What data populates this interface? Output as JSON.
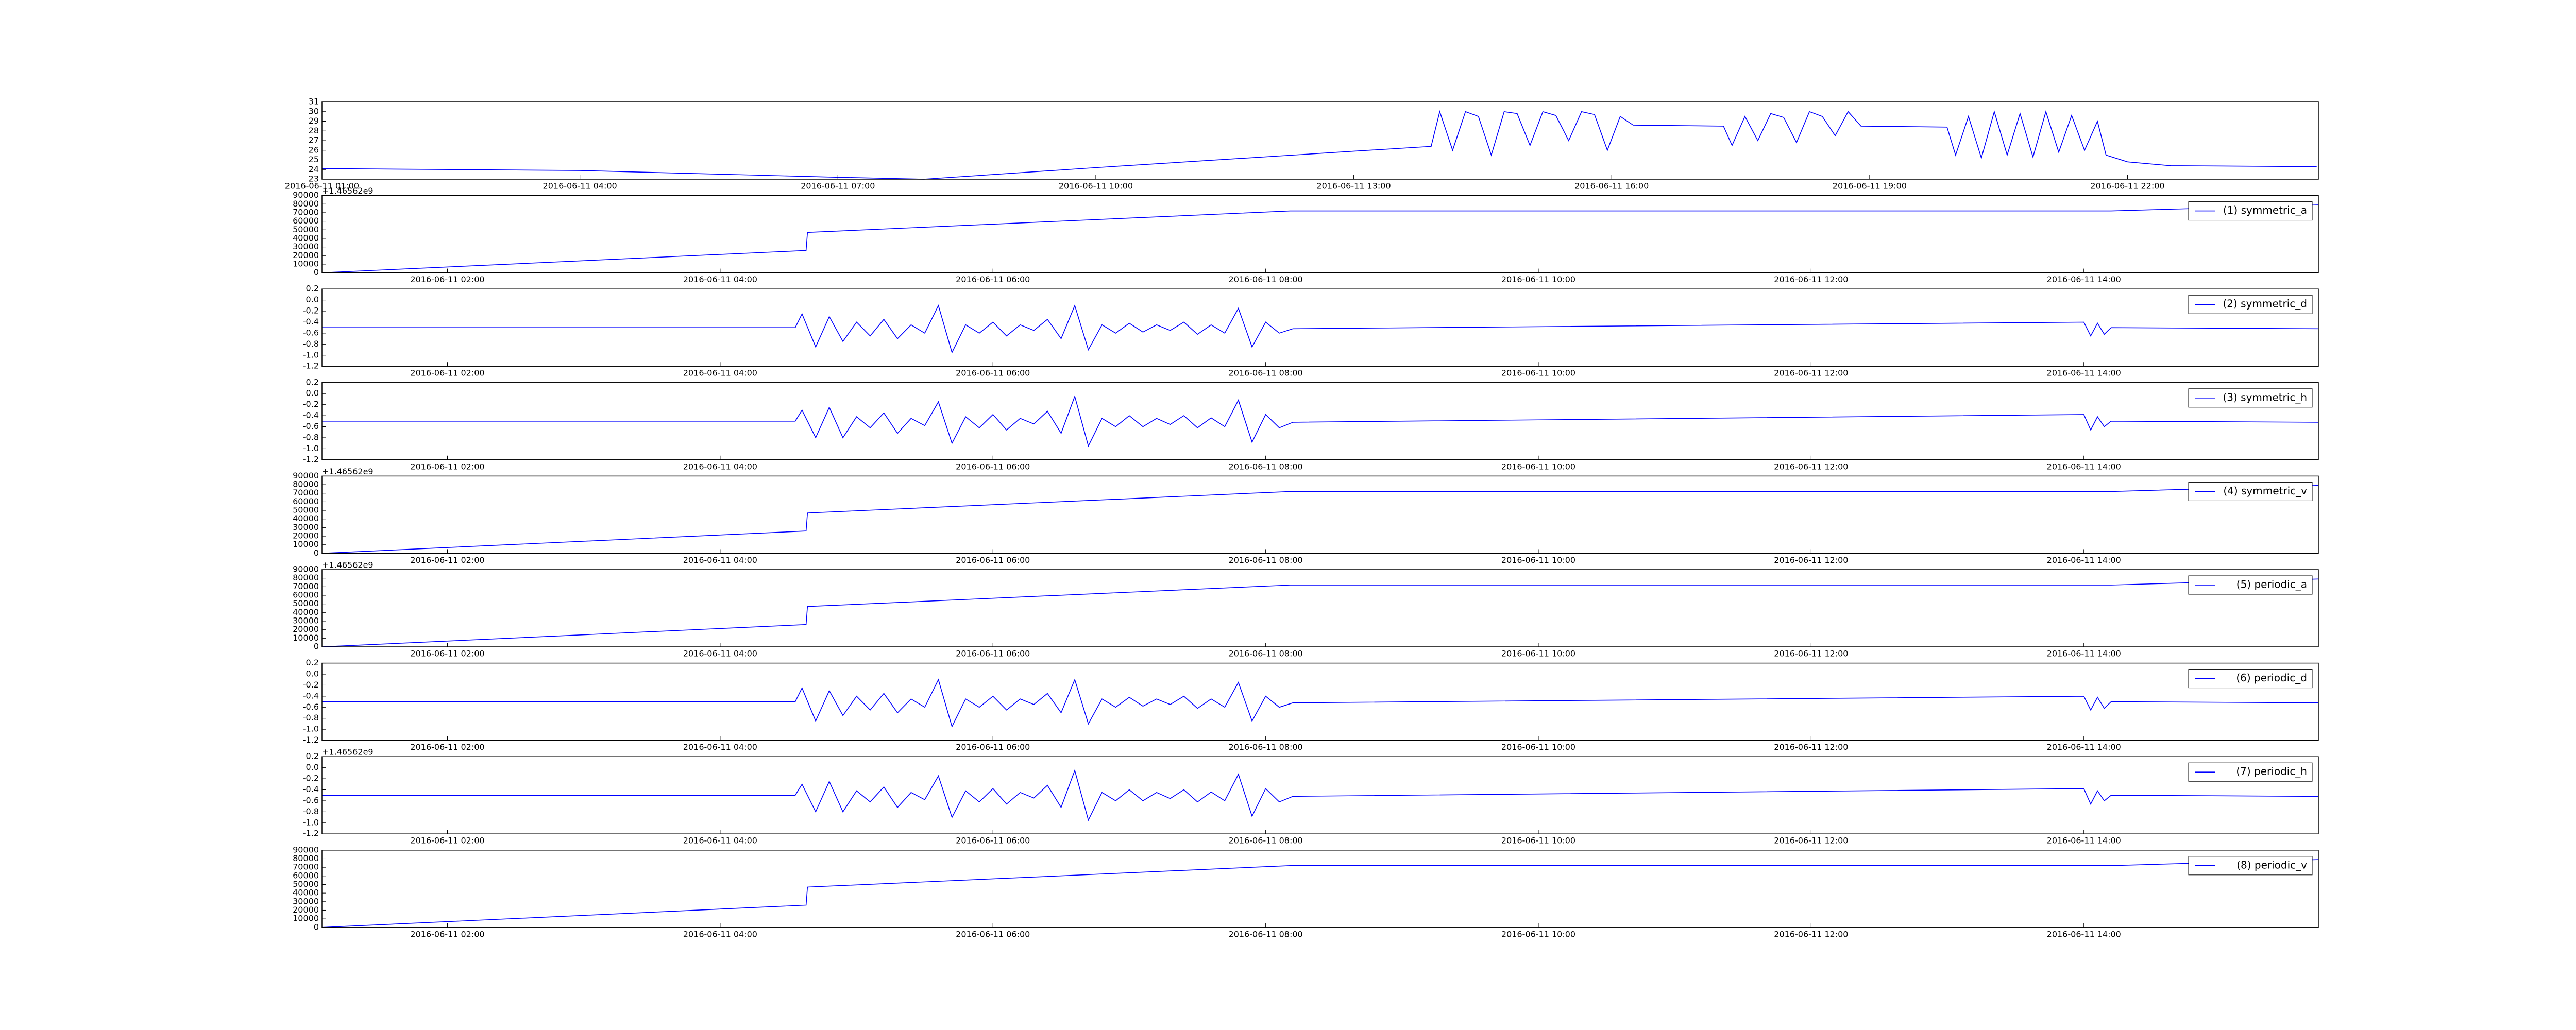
{
  "chart_data": [
    {
      "type": "line",
      "color": "#0000ff",
      "x": [
        1.0,
        4.0,
        7.0,
        8.0,
        10.0,
        13.0,
        13.9,
        14.0,
        14.15,
        14.3,
        14.45,
        14.6,
        14.75,
        14.9,
        15.05,
        15.2,
        15.35,
        15.5,
        15.65,
        15.8,
        15.95,
        16.1,
        16.25,
        17.3,
        17.4,
        17.55,
        17.7,
        17.85,
        18.0,
        18.15,
        18.3,
        18.45,
        18.6,
        18.75,
        18.9,
        19.9,
        20.0,
        20.15,
        20.3,
        20.45,
        20.6,
        20.75,
        20.9,
        21.05,
        21.2,
        21.35,
        21.5,
        21.65,
        21.75,
        22.0,
        22.5,
        24.2
      ],
      "values": [
        24.1,
        23.9,
        23.2,
        23.0,
        24.2,
        25.9,
        26.4,
        30,
        26,
        30,
        29.5,
        25.5,
        30,
        29.8,
        26.5,
        30,
        29.6,
        27,
        30,
        29.7,
        26,
        29.5,
        28.6,
        28.5,
        26.5,
        29.5,
        27,
        29.8,
        29.4,
        26.8,
        30,
        29.5,
        27.5,
        30,
        28.5,
        28.4,
        25.5,
        29.5,
        25.2,
        30,
        25.5,
        29.8,
        25.3,
        30,
        25.8,
        29.6,
        26,
        29,
        25.5,
        24.8,
        24.4,
        24.3
      ],
      "xlim": [
        1.0,
        24.22
      ],
      "ylim": [
        23,
        31
      ],
      "yticks": [
        23,
        24,
        25,
        26,
        27,
        28,
        29,
        30,
        31
      ],
      "xticks": [
        {
          "value": 1,
          "label": "2016-06-11 01:00"
        },
        {
          "value": 4,
          "label": "2016-06-11 04:00"
        },
        {
          "value": 7,
          "label": "2016-06-11 07:00"
        },
        {
          "value": 10,
          "label": "2016-06-11 10:00"
        },
        {
          "value": 13,
          "label": "2016-06-11 13:00"
        },
        {
          "value": 16,
          "label": "2016-06-11 16:00"
        },
        {
          "value": 19,
          "label": "2016-06-11 19:00"
        },
        {
          "value": 22,
          "label": "2016-06-11 22:00"
        }
      ]
    },
    {
      "type": "line",
      "offset_text": "+1.46562e9",
      "legend": "upper right",
      "x": [
        1.08,
        4.63,
        4.64,
        8.18,
        14.2,
        15.72
      ],
      "series": [
        {
          "name": "(1) symmetric_a",
          "color": "#0000ff",
          "values": [
            0,
            26000,
            47000,
            72000,
            72000,
            79000
          ]
        }
      ],
      "xlim": [
        1.08,
        15.72
      ],
      "ylim": [
        0,
        90000
      ],
      "yticks": [
        0,
        10000,
        20000,
        30000,
        40000,
        50000,
        60000,
        70000,
        80000,
        90000
      ],
      "xticks": [
        {
          "value": 2,
          "label": "2016-06-11 02:00"
        },
        {
          "value": 4,
          "label": "2016-06-11 04:00"
        },
        {
          "value": 6,
          "label": "2016-06-11 06:00"
        },
        {
          "value": 8,
          "label": "2016-06-11 08:00"
        },
        {
          "value": 10,
          "label": "2016-06-11 10:00"
        },
        {
          "value": 12,
          "label": "2016-06-11 12:00"
        },
        {
          "value": 14,
          "label": "2016-06-11 14:00"
        }
      ]
    },
    {
      "type": "line",
      "legend": "upper right",
      "x": [
        1.08,
        4.55,
        4.6,
        4.7,
        4.8,
        4.9,
        5.0,
        5.1,
        5.2,
        5.3,
        5.4,
        5.5,
        5.6,
        5.7,
        5.8,
        5.9,
        6.0,
        6.1,
        6.2,
        6.3,
        6.4,
        6.5,
        6.6,
        6.7,
        6.8,
        6.9,
        7.0,
        7.1,
        7.2,
        7.3,
        7.4,
        7.5,
        7.6,
        7.7,
        7.8,
        7.9,
        8.0,
        8.1,
        8.2,
        14.0,
        14.05,
        14.1,
        14.15,
        14.2,
        15.72
      ],
      "series": [
        {
          "name": "(2) symmetric_d",
          "color": "#0000ff",
          "values": [
            -0.5,
            -0.5,
            -0.25,
            -0.85,
            -0.3,
            -0.75,
            -0.4,
            -0.65,
            -0.35,
            -0.7,
            -0.45,
            -0.6,
            -0.1,
            -0.95,
            -0.45,
            -0.6,
            -0.4,
            -0.65,
            -0.45,
            -0.55,
            -0.35,
            -0.7,
            -0.1,
            -0.9,
            -0.45,
            -0.6,
            -0.42,
            -0.58,
            -0.45,
            -0.55,
            -0.4,
            -0.62,
            -0.45,
            -0.6,
            -0.15,
            -0.85,
            -0.4,
            -0.6,
            -0.52,
            -0.4,
            -0.65,
            -0.42,
            -0.62,
            -0.5,
            -0.52
          ]
        }
      ],
      "xlim": [
        1.08,
        15.72
      ],
      "ylim": [
        -1.2,
        0.2
      ],
      "yticks": [
        -1.2,
        {
          "value": -1,
          "label": "-1.0"
        },
        -0.8,
        -0.6,
        -0.4,
        -0.2,
        {
          "value": 0,
          "label": "0.0"
        },
        0.2
      ],
      "xticks": [
        {
          "value": 2,
          "label": "2016-06-11 02:00"
        },
        {
          "value": 4,
          "label": "2016-06-11 04:00"
        },
        {
          "value": 6,
          "label": "2016-06-11 06:00"
        },
        {
          "value": 8,
          "label": "2016-06-11 08:00"
        },
        {
          "value": 10,
          "label": "2016-06-11 10:00"
        },
        {
          "value": 12,
          "label": "2016-06-11 12:00"
        },
        {
          "value": 14,
          "label": "2016-06-11 14:00"
        }
      ]
    },
    {
      "type": "line",
      "legend": "upper right",
      "x": [
        1.08,
        4.55,
        4.6,
        4.7,
        4.8,
        4.9,
        5.0,
        5.1,
        5.2,
        5.3,
        5.4,
        5.5,
        5.6,
        5.7,
        5.8,
        5.9,
        6.0,
        6.1,
        6.2,
        6.3,
        6.4,
        6.5,
        6.6,
        6.7,
        6.8,
        6.9,
        7.0,
        7.1,
        7.2,
        7.3,
        7.4,
        7.5,
        7.6,
        7.7,
        7.8,
        7.9,
        8.0,
        8.1,
        8.2,
        14.0,
        14.05,
        14.1,
        14.15,
        14.2,
        15.72
      ],
      "series": [
        {
          "name": "(3) symmetric_h",
          "color": "#0000ff",
          "values": [
            -0.5,
            -0.5,
            -0.3,
            -0.8,
            -0.25,
            -0.8,
            -0.42,
            -0.62,
            -0.35,
            -0.72,
            -0.45,
            -0.58,
            -0.15,
            -0.9,
            -0.42,
            -0.62,
            -0.38,
            -0.66,
            -0.45,
            -0.55,
            -0.32,
            -0.72,
            -0.05,
            -0.95,
            -0.45,
            -0.6,
            -0.4,
            -0.6,
            -0.45,
            -0.56,
            -0.4,
            -0.62,
            -0.44,
            -0.6,
            -0.12,
            -0.88,
            -0.38,
            -0.62,
            -0.52,
            -0.38,
            -0.66,
            -0.42,
            -0.6,
            -0.5,
            -0.52
          ]
        }
      ],
      "xlim": [
        1.08,
        15.72
      ],
      "ylim": [
        -1.2,
        0.2
      ],
      "yticks": [
        -1.2,
        {
          "value": -1,
          "label": "-1.0"
        },
        -0.8,
        -0.6,
        -0.4,
        -0.2,
        {
          "value": 0,
          "label": "0.0"
        },
        0.2
      ],
      "xticks": [
        {
          "value": 2,
          "label": "2016-06-11 02:00"
        },
        {
          "value": 4,
          "label": "2016-06-11 04:00"
        },
        {
          "value": 6,
          "label": "2016-06-11 06:00"
        },
        {
          "value": 8,
          "label": "2016-06-11 08:00"
        },
        {
          "value": 10,
          "label": "2016-06-11 10:00"
        },
        {
          "value": 12,
          "label": "2016-06-11 12:00"
        },
        {
          "value": 14,
          "label": "2016-06-11 14:00"
        }
      ]
    },
    {
      "type": "line",
      "offset_text": "+1.46562e9",
      "legend": "upper right",
      "x": [
        1.08,
        4.63,
        4.64,
        8.18,
        14.2,
        15.72
      ],
      "series": [
        {
          "name": "(4) symmetric_v",
          "color": "#0000ff",
          "values": [
            0,
            26000,
            47000,
            72000,
            72000,
            79000
          ]
        }
      ],
      "xlim": [
        1.08,
        15.72
      ],
      "ylim": [
        0,
        90000
      ],
      "yticks": [
        0,
        10000,
        20000,
        30000,
        40000,
        50000,
        60000,
        70000,
        80000,
        90000
      ],
      "xticks": [
        {
          "value": 2,
          "label": "2016-06-11 02:00"
        },
        {
          "value": 4,
          "label": "2016-06-11 04:00"
        },
        {
          "value": 6,
          "label": "2016-06-11 06:00"
        },
        {
          "value": 8,
          "label": "2016-06-11 08:00"
        },
        {
          "value": 10,
          "label": "2016-06-11 10:00"
        },
        {
          "value": 12,
          "label": "2016-06-11 12:00"
        },
        {
          "value": 14,
          "label": "2016-06-11 14:00"
        }
      ]
    },
    {
      "type": "line",
      "offset_text": "+1.46562e9",
      "legend": "upper right",
      "x": [
        1.08,
        4.63,
        4.64,
        8.18,
        14.2,
        15.72
      ],
      "series": [
        {
          "name": "(5) periodic_a",
          "color": "#0000ff",
          "values": [
            0,
            26000,
            47000,
            72000,
            72000,
            79000
          ]
        }
      ],
      "xlim": [
        1.08,
        15.72
      ],
      "ylim": [
        0,
        90000
      ],
      "yticks": [
        0,
        10000,
        20000,
        30000,
        40000,
        50000,
        60000,
        70000,
        80000,
        90000
      ],
      "xticks": [
        {
          "value": 2,
          "label": "2016-06-11 02:00"
        },
        {
          "value": 4,
          "label": "2016-06-11 04:00"
        },
        {
          "value": 6,
          "label": "2016-06-11 06:00"
        },
        {
          "value": 8,
          "label": "2016-06-11 08:00"
        },
        {
          "value": 10,
          "label": "2016-06-11 10:00"
        },
        {
          "value": 12,
          "label": "2016-06-11 12:00"
        },
        {
          "value": 14,
          "label": "2016-06-11 14:00"
        }
      ]
    },
    {
      "type": "line",
      "legend": "upper right",
      "x": [
        1.08,
        4.55,
        4.6,
        4.7,
        4.8,
        4.9,
        5.0,
        5.1,
        5.2,
        5.3,
        5.4,
        5.5,
        5.6,
        5.7,
        5.8,
        5.9,
        6.0,
        6.1,
        6.2,
        6.3,
        6.4,
        6.5,
        6.6,
        6.7,
        6.8,
        6.9,
        7.0,
        7.1,
        7.2,
        7.3,
        7.4,
        7.5,
        7.6,
        7.7,
        7.8,
        7.9,
        8.0,
        8.1,
        8.2,
        14.0,
        14.05,
        14.1,
        14.15,
        14.2,
        15.72
      ],
      "series": [
        {
          "name": "(6) periodic_d",
          "color": "#0000ff",
          "values": [
            -0.5,
            -0.5,
            -0.25,
            -0.85,
            -0.3,
            -0.75,
            -0.4,
            -0.65,
            -0.35,
            -0.7,
            -0.45,
            -0.6,
            -0.1,
            -0.95,
            -0.45,
            -0.6,
            -0.4,
            -0.65,
            -0.45,
            -0.55,
            -0.35,
            -0.7,
            -0.1,
            -0.9,
            -0.45,
            -0.6,
            -0.42,
            -0.58,
            -0.45,
            -0.55,
            -0.4,
            -0.62,
            -0.45,
            -0.6,
            -0.15,
            -0.85,
            -0.4,
            -0.6,
            -0.52,
            -0.4,
            -0.65,
            -0.42,
            -0.62,
            -0.5,
            -0.52
          ]
        }
      ],
      "xlim": [
        1.08,
        15.72
      ],
      "ylim": [
        -1.2,
        0.2
      ],
      "yticks": [
        -1.2,
        {
          "value": -1,
          "label": "-1.0"
        },
        -0.8,
        -0.6,
        -0.4,
        -0.2,
        {
          "value": 0,
          "label": "0.0"
        },
        0.2
      ],
      "xticks": [
        {
          "value": 2,
          "label": "2016-06-11 02:00"
        },
        {
          "value": 4,
          "label": "2016-06-11 04:00"
        },
        {
          "value": 6,
          "label": "2016-06-11 06:00"
        },
        {
          "value": 8,
          "label": "2016-06-11 08:00"
        },
        {
          "value": 10,
          "label": "2016-06-11 10:00"
        },
        {
          "value": 12,
          "label": "2016-06-11 12:00"
        },
        {
          "value": 14,
          "label": "2016-06-11 14:00"
        }
      ]
    },
    {
      "type": "line",
      "offset_text": "+1.46562e9",
      "legend": "upper right",
      "x": [
        1.08,
        4.55,
        4.6,
        4.7,
        4.8,
        4.9,
        5.0,
        5.1,
        5.2,
        5.3,
        5.4,
        5.5,
        5.6,
        5.7,
        5.8,
        5.9,
        6.0,
        6.1,
        6.2,
        6.3,
        6.4,
        6.5,
        6.6,
        6.7,
        6.8,
        6.9,
        7.0,
        7.1,
        7.2,
        7.3,
        7.4,
        7.5,
        7.6,
        7.7,
        7.8,
        7.9,
        8.0,
        8.1,
        8.2,
        14.0,
        14.05,
        14.1,
        14.15,
        14.2,
        15.72
      ],
      "series": [
        {
          "name": "(7) periodic_h",
          "color": "#0000ff",
          "values": [
            -0.5,
            -0.5,
            -0.3,
            -0.8,
            -0.25,
            -0.8,
            -0.42,
            -0.62,
            -0.35,
            -0.72,
            -0.45,
            -0.58,
            -0.15,
            -0.9,
            -0.42,
            -0.62,
            -0.38,
            -0.66,
            -0.45,
            -0.55,
            -0.32,
            -0.72,
            -0.05,
            -0.95,
            -0.45,
            -0.6,
            -0.4,
            -0.6,
            -0.45,
            -0.56,
            -0.4,
            -0.62,
            -0.44,
            -0.6,
            -0.12,
            -0.88,
            -0.38,
            -0.62,
            -0.52,
            -0.38,
            -0.66,
            -0.42,
            -0.6,
            -0.5,
            -0.52
          ]
        }
      ],
      "xlim": [
        1.08,
        15.72
      ],
      "ylim": [
        -1.2,
        0.2
      ],
      "yticks": [
        -1.2,
        {
          "value": -1,
          "label": "-1.0"
        },
        -0.8,
        -0.6,
        -0.4,
        -0.2,
        {
          "value": 0,
          "label": "0.0"
        },
        0.2
      ],
      "xticks": [
        {
          "value": 2,
          "label": "2016-06-11 02:00"
        },
        {
          "value": 4,
          "label": "2016-06-11 04:00"
        },
        {
          "value": 6,
          "label": "2016-06-11 06:00"
        },
        {
          "value": 8,
          "label": "2016-06-11 08:00"
        },
        {
          "value": 10,
          "label": "2016-06-11 10:00"
        },
        {
          "value": 12,
          "label": "2016-06-11 12:00"
        },
        {
          "value": 14,
          "label": "2016-06-11 14:00"
        }
      ]
    },
    {
      "type": "line",
      "legend": "upper right",
      "x": [
        1.08,
        4.63,
        4.64,
        8.18,
        14.2,
        15.72
      ],
      "series": [
        {
          "name": "(8) periodic_v",
          "color": "#0000ff",
          "values": [
            0,
            26000,
            47000,
            72000,
            72000,
            79000
          ]
        }
      ],
      "xlim": [
        1.08,
        15.72
      ],
      "ylim": [
        0,
        90000
      ],
      "yticks": [
        0,
        10000,
        20000,
        30000,
        40000,
        50000,
        60000,
        70000,
        80000,
        90000
      ],
      "xticks": [
        {
          "value": 2,
          "label": "2016-06-11 02:00"
        },
        {
          "value": 4,
          "label": "2016-06-11 04:00"
        },
        {
          "value": 6,
          "label": "2016-06-11 06:00"
        },
        {
          "value": 8,
          "label": "2016-06-11 08:00"
        },
        {
          "value": 10,
          "label": "2016-06-11 10:00"
        },
        {
          "value": 12,
          "label": "2016-06-11 12:00"
        },
        {
          "value": 14,
          "label": "2016-06-11 14:00"
        }
      ]
    }
  ]
}
